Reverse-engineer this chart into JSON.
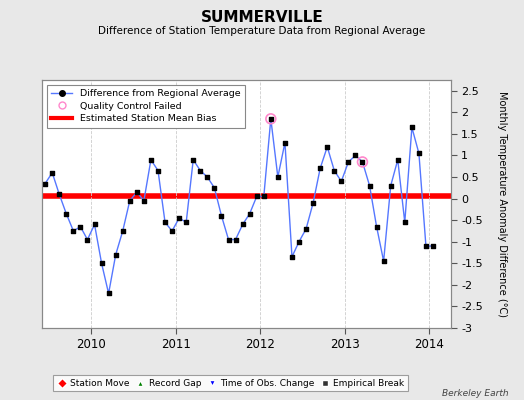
{
  "title": "SUMMERVILLE",
  "subtitle": "Difference of Station Temperature Data from Regional Average",
  "ylabel_right": "Monthly Temperature Anomaly Difference (°C)",
  "bias": 0.05,
  "xlim": [
    2009.42,
    2014.25
  ],
  "ylim": [
    -3.0,
    2.75
  ],
  "yticks": [
    -3,
    -2.5,
    -2,
    -1.5,
    -1,
    -0.5,
    0,
    0.5,
    1,
    1.5,
    2,
    2.5
  ],
  "xticks": [
    2010,
    2011,
    2012,
    2013,
    2014
  ],
  "background_color": "#e8e8e8",
  "plot_bg_color": "#ffffff",
  "grid_color": "#cccccc",
  "line_color": "#5577ff",
  "dot_color": "#000000",
  "bias_color": "#ff0000",
  "watermark": "Berkeley Earth",
  "times": [
    2009.458,
    2009.542,
    2009.625,
    2009.708,
    2009.792,
    2009.875,
    2009.958,
    2010.042,
    2010.125,
    2010.208,
    2010.292,
    2010.375,
    2010.458,
    2010.542,
    2010.625,
    2010.708,
    2010.792,
    2010.875,
    2010.958,
    2011.042,
    2011.125,
    2011.208,
    2011.292,
    2011.375,
    2011.458,
    2011.542,
    2011.625,
    2011.708,
    2011.792,
    2011.875,
    2011.958,
    2012.042,
    2012.125,
    2012.208,
    2012.292,
    2012.375,
    2012.458,
    2012.542,
    2012.625,
    2012.708,
    2012.792,
    2012.875,
    2012.958,
    2013.042,
    2013.125,
    2013.208,
    2013.292,
    2013.375,
    2013.458,
    2013.542,
    2013.625,
    2013.708,
    2013.792,
    2013.875,
    2013.958,
    2014.042
  ],
  "values": [
    0.35,
    0.6,
    0.1,
    -0.35,
    -0.75,
    -0.65,
    -0.95,
    -0.6,
    -1.5,
    -2.2,
    -1.3,
    -0.75,
    -0.05,
    0.15,
    -0.05,
    0.9,
    0.65,
    -0.55,
    -0.75,
    -0.45,
    -0.55,
    0.9,
    0.65,
    0.5,
    0.25,
    -0.4,
    -0.95,
    -0.95,
    -0.6,
    -0.35,
    0.05,
    0.05,
    1.85,
    0.5,
    1.3,
    -1.35,
    -1.0,
    -0.7,
    -0.1,
    0.7,
    1.2,
    0.65,
    0.4,
    0.85,
    1.0,
    0.85,
    0.3,
    -0.65,
    -1.45,
    0.3,
    0.9,
    -0.55,
    1.65,
    1.05,
    -1.1,
    -1.1
  ],
  "qc_failed_times": [
    2012.125,
    2013.208
  ],
  "qc_failed_values": [
    1.85,
    0.85
  ]
}
